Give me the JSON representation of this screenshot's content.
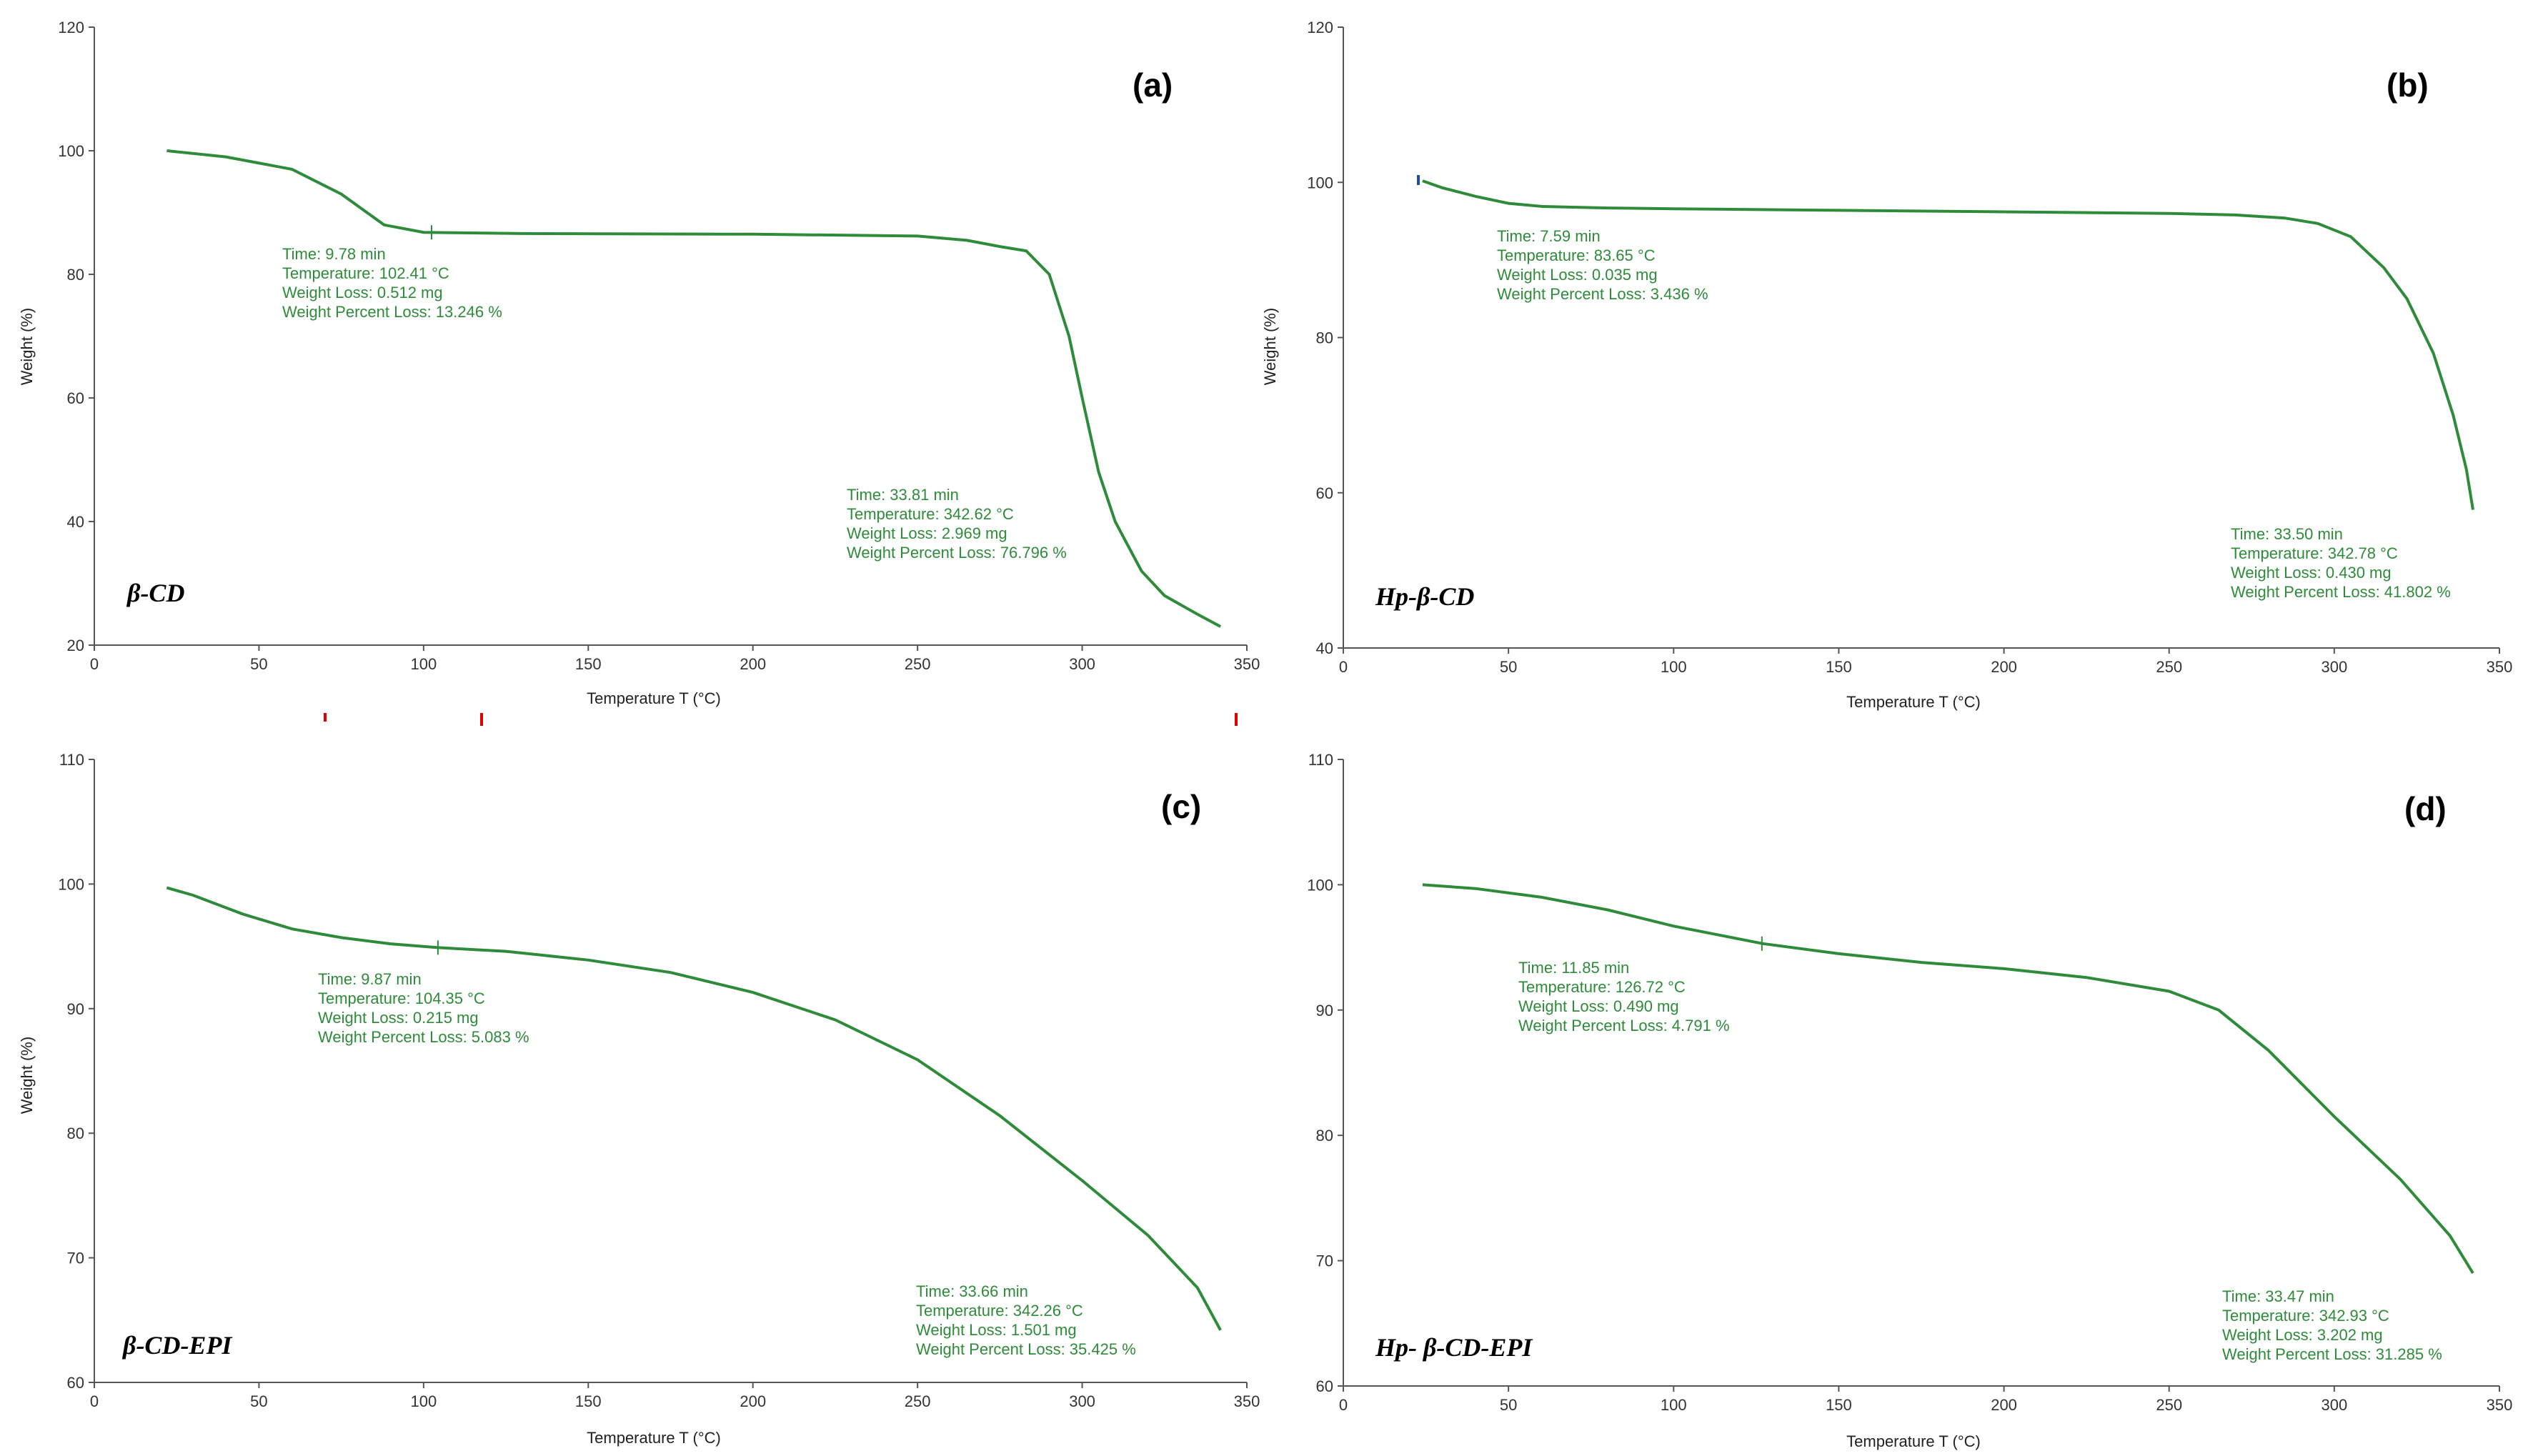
{
  "figure": {
    "xlabel": "Temperature  T  (°C)",
    "ylabel": "Weight (%)",
    "curve_color": "#2e8b3a",
    "annotation_color": "#2e8b3a"
  },
  "chart_data": [
    {
      "type": "line",
      "panel": "(a)",
      "sample": "β-CD",
      "xlabel": "Temperature  T  (°C)",
      "ylabel": "Weight (%)",
      "xlim": [
        0,
        350
      ],
      "ylim": [
        20,
        120
      ],
      "xticks": [
        0,
        50,
        100,
        150,
        200,
        250,
        300,
        350
      ],
      "yticks": [
        20,
        40,
        60,
        80,
        100,
        120
      ],
      "series": [
        {
          "name": "β-CD",
          "x": [
            22,
            40,
            60,
            75,
            88,
            100,
            130,
            200,
            250,
            265,
            275,
            283,
            290,
            296,
            300,
            305,
            310,
            318,
            325,
            335,
            342
          ],
          "y": [
            100,
            99,
            97,
            93,
            88,
            86.8,
            86.6,
            86.5,
            86.2,
            85.5,
            84.5,
            83.8,
            80,
            70,
            60,
            48,
            40,
            32,
            28,
            25,
            23
          ]
        }
      ],
      "markers": [
        {
          "x": 102.41,
          "y": 86.8
        }
      ],
      "annotations": [
        {
          "lines": [
            "Time: 9.78 min",
            "Temperature: 102.41 °C",
            "Weight Loss: 0.512 mg",
            "Weight Percent Loss: 13.246 %"
          ]
        },
        {
          "lines": [
            "Time: 33.81 min",
            "Temperature: 342.62 °C",
            "Weight Loss: 2.969 mg",
            "Weight Percent Loss: 76.796 %"
          ]
        }
      ]
    },
    {
      "type": "line",
      "panel": "(b)",
      "sample": "Hp-β-CD",
      "xlabel": "Temperature  T  (°C)",
      "ylabel": "Weight (%)",
      "xlim": [
        0,
        350
      ],
      "ylim": [
        40,
        120
      ],
      "xticks": [
        0,
        50,
        100,
        150,
        200,
        250,
        300,
        350
      ],
      "yticks": [
        40,
        60,
        80,
        100,
        120
      ],
      "series": [
        {
          "name": "Hp-β-CD",
          "x": [
            24,
            30,
            40,
            50,
            60,
            80,
            100,
            150,
            200,
            250,
            270,
            285,
            295,
            305,
            315,
            322,
            330,
            336,
            340,
            342
          ],
          "y": [
            100.2,
            99.3,
            98.2,
            97.3,
            96.9,
            96.7,
            96.6,
            96.4,
            96.2,
            96,
            95.8,
            95.4,
            94.7,
            93,
            89,
            85,
            78,
            70,
            63,
            57.8
          ]
        }
      ],
      "markers": [],
      "annotations": [
        {
          "lines": [
            "Time: 7.59 min",
            "Temperature: 83.65 °C",
            "Weight Loss: 0.035 mg",
            "Weight Percent Loss: 3.436 %"
          ]
        },
        {
          "lines": [
            "Time: 33.50 min",
            "Temperature: 342.78 °C",
            "Weight Loss: 0.430 mg",
            "Weight Percent Loss: 41.802 %"
          ]
        }
      ]
    },
    {
      "type": "line",
      "panel": "(c)",
      "sample": "β-CD-EPI",
      "xlabel": "Temperature  T  (°C)",
      "ylabel": "Weight (%)",
      "xlim": [
        0,
        350
      ],
      "ylim": [
        60,
        110
      ],
      "xticks": [
        0,
        50,
        100,
        150,
        200,
        250,
        300,
        350
      ],
      "yticks": [
        60,
        70,
        80,
        90,
        100,
        110
      ],
      "series": [
        {
          "name": "β-CD-EPI",
          "x": [
            22,
            30,
            45,
            60,
            75,
            90,
            104,
            125,
            150,
            175,
            200,
            225,
            250,
            275,
            300,
            320,
            335,
            342
          ],
          "y": [
            99.7,
            99.1,
            97.6,
            96.4,
            95.7,
            95.2,
            94.9,
            94.6,
            93.9,
            92.9,
            91.3,
            89.1,
            85.9,
            81.4,
            76.2,
            71.8,
            67.6,
            64.2
          ]
        }
      ],
      "markers": [
        {
          "x": 104.35,
          "y": 94.9
        }
      ],
      "annotations": [
        {
          "lines": [
            "Time: 9.87 min",
            "Temperature: 104.35 °C",
            "Weight Loss: 0.215 mg",
            "Weight Percent Loss: 5.083 %"
          ]
        },
        {
          "lines": [
            "Time: 33.66 min",
            "Temperature: 342.26 °C",
            "Weight Loss: 1.501 mg",
            "Weight Percent Loss: 35.425 %"
          ]
        }
      ]
    },
    {
      "type": "line",
      "panel": "(d)",
      "sample": "Hp- β-CD-EPI",
      "xlabel": "Temperature  T  (°C)",
      "ylabel": "Weight (%)",
      "xlim": [
        0,
        350
      ],
      "ylim": [
        60,
        110
      ],
      "xticks": [
        0,
        50,
        100,
        150,
        200,
        250,
        300,
        350
      ],
      "yticks": [
        60,
        70,
        80,
        90,
        100,
        110
      ],
      "series": [
        {
          "name": "Hp- β-CD-EPI",
          "x": [
            24,
            40,
            60,
            80,
            100,
            127,
            150,
            175,
            200,
            225,
            250,
            265,
            280,
            300,
            320,
            335,
            342
          ],
          "y": [
            100,
            99.7,
            99,
            98,
            96.7,
            95.3,
            94.5,
            93.8,
            93.3,
            92.6,
            91.5,
            90,
            86.8,
            81.5,
            76.5,
            72,
            69
          ]
        }
      ],
      "markers": [
        {
          "x": 126.72,
          "y": 95.3
        }
      ],
      "annotations": [
        {
          "lines": [
            "Time: 11.85 min",
            "Temperature: 126.72 °C",
            "Weight Loss: 0.490 mg",
            "Weight Percent Loss: 4.791 %"
          ]
        },
        {
          "lines": [
            "Time: 33.47 min",
            "Temperature: 342.93 °C",
            "Weight Loss: 3.202 mg",
            "Weight Percent Loss: 31.285 %"
          ]
        }
      ]
    }
  ]
}
